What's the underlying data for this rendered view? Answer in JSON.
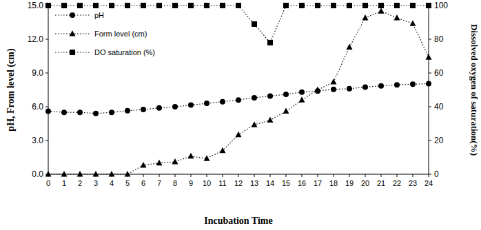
{
  "chart_data": {
    "type": "line",
    "x_label": "Incubation Time",
    "y_label": "pH, From level (cm)",
    "y2_label": "Dissolved oxygen of saturation(%)",
    "x": [
      0,
      1,
      2,
      3,
      4,
      5,
      6,
      7,
      8,
      9,
      10,
      11,
      12,
      13,
      14,
      15,
      16,
      17,
      18,
      19,
      20,
      21,
      22,
      23,
      24
    ],
    "xlim": [
      0,
      24
    ],
    "xticks": [
      0,
      1,
      2,
      3,
      4,
      5,
      6,
      7,
      8,
      9,
      10,
      11,
      12,
      13,
      14,
      15,
      16,
      17,
      18,
      19,
      20,
      21,
      22,
      23,
      24
    ],
    "ylim": [
      0,
      15
    ],
    "yticks": [
      {
        "value": 0,
        "label": "0.0"
      },
      {
        "value": 3,
        "label": "3.0"
      },
      {
        "value": 6,
        "label": "6.0"
      },
      {
        "value": 9,
        "label": "9.0"
      },
      {
        "value": 12,
        "label": "12.0"
      },
      {
        "value": 15,
        "label": "15.0"
      }
    ],
    "y2lim": [
      0,
      100
    ],
    "y2ticks": [
      0,
      20,
      40,
      60,
      80,
      100
    ],
    "grid": false,
    "legend": "upper-left",
    "series": [
      {
        "name": "pH",
        "color": "#000000",
        "marker": "circle",
        "line_style": "dotted",
        "values": [
          5.6,
          5.5,
          5.5,
          5.4,
          5.5,
          5.65,
          5.75,
          5.9,
          6.0,
          6.15,
          6.3,
          6.45,
          6.6,
          6.8,
          6.95,
          7.1,
          7.3,
          7.4,
          7.55,
          7.6,
          7.75,
          7.85,
          7.95,
          8.0,
          8.05
        ]
      },
      {
        "name": "Form level (cm)",
        "color": "#000000",
        "marker": "triangle",
        "line_style": "dotted",
        "values": [
          0,
          0,
          0,
          0,
          0,
          0,
          0.8,
          1.0,
          1.1,
          1.6,
          1.4,
          2.1,
          3.5,
          4.4,
          4.8,
          5.6,
          6.6,
          7.5,
          8.2,
          11.3,
          13.9,
          14.5,
          13.9,
          13.4,
          10.4
        ]
      },
      {
        "name": "DO saturation (%)",
        "color": "#000000",
        "marker": "square",
        "line_style": "dotted",
        "axis": "y2",
        "values": [
          100,
          100,
          100,
          100,
          100,
          100,
          100,
          100,
          100,
          100,
          100,
          100,
          100,
          89,
          78,
          100,
          100,
          100,
          100,
          100,
          100,
          100,
          100,
          100,
          100
        ]
      }
    ]
  }
}
